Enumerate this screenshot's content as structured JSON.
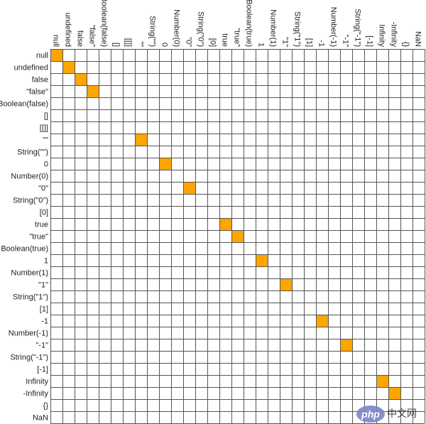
{
  "diagram": {
    "labels": [
      "null",
      "undefined",
      "false",
      "\"false\"",
      "Boolean(false)",
      "[]",
      "[[]]",
      "\"\"",
      "String(\"\")",
      "0",
      "Number(0)",
      "\"0\"",
      "String(\"0\")",
      "[0]",
      "true",
      "\"true\"",
      "Boolean(true)",
      "1",
      "Number(1)",
      "\"1\"",
      "String(\"1\")",
      "[1]",
      "-1",
      "Number(-1)",
      "\"-1\"",
      "String(\"-1\")",
      "[-1]",
      "Infinity",
      "-Infinity",
      "{}",
      "NaN"
    ],
    "highlighted_indices": [
      0,
      1,
      2,
      3,
      7,
      9,
      11,
      14,
      15,
      17,
      19,
      22,
      24,
      27,
      28
    ],
    "colors": {
      "highlight": "#ffa500",
      "grid": "#555555",
      "text": "#222222",
      "background": "#ffffff"
    }
  },
  "watermark": {
    "logo": "php",
    "text": "中文网"
  }
}
